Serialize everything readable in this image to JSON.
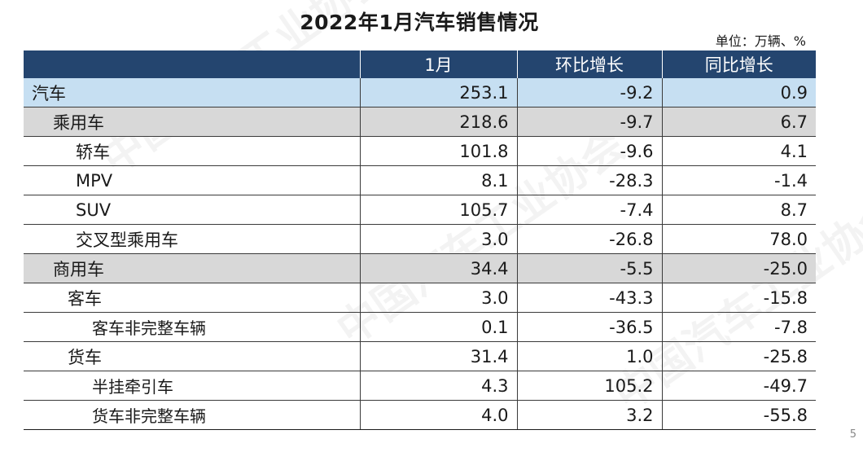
{
  "title": "2022年1月汽车销售情况",
  "unit": "单位：万辆、%",
  "watermark": "中国汽车工业协会",
  "headers": [
    "",
    "1月",
    "环比增长",
    "同比增长"
  ],
  "rows": [
    {
      "name": "汽车",
      "jan": "253.1",
      "mom": "-9.2",
      "yoy": "0.9",
      "level": 0
    },
    {
      "name": "乘用车",
      "jan": "218.6",
      "mom": "-9.7",
      "yoy": "6.7",
      "level": 1
    },
    {
      "name": "轿车",
      "jan": "101.8",
      "mom": "-9.6",
      "yoy": "4.1",
      "level": 2
    },
    {
      "name": "MPV",
      "jan": "8.1",
      "mom": "-28.3",
      "yoy": "-1.4",
      "level": 2
    },
    {
      "name": "SUV",
      "jan": "105.7",
      "mom": "-7.4",
      "yoy": "8.7",
      "level": 2
    },
    {
      "name": "交叉型乘用车",
      "jan": "3.0",
      "mom": "-26.8",
      "yoy": "78.0",
      "level": 2
    },
    {
      "name": "商用车",
      "jan": "34.4",
      "mom": "-5.5",
      "yoy": "-25.0",
      "level": 1
    },
    {
      "name": "客车",
      "jan": "3.0",
      "mom": "-43.3",
      "yoy": "-15.8",
      "level": 2
    },
    {
      "name": "客车非完整车辆",
      "jan": "0.1",
      "mom": "-36.5",
      "yoy": "-7.8",
      "level": 3
    },
    {
      "name": "货车",
      "jan": "31.4",
      "mom": "1.0",
      "yoy": "-25.8",
      "level": 2
    },
    {
      "name": "半挂牵引车",
      "jan": "4.3",
      "mom": "105.2",
      "yoy": "-49.7",
      "level": 3
    },
    {
      "name": "货车非完整车辆",
      "jan": "4.0",
      "mom": "3.2",
      "yoy": "-55.8",
      "level": 3
    }
  ],
  "page_number": "5"
}
